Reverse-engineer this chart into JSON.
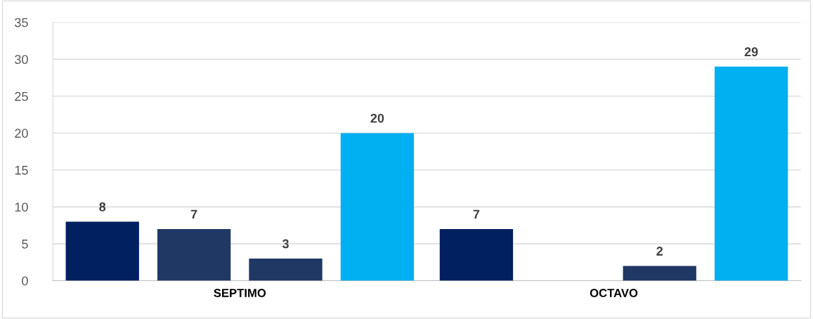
{
  "chart_data": {
    "type": "bar",
    "categories": [
      "SEPTIMO",
      "OCTAVO"
    ],
    "series": [
      {
        "color": "#002060",
        "values": [
          8,
          7
        ]
      },
      {
        "color": "#203864",
        "values": [
          7,
          null
        ]
      },
      {
        "color": "#1f3864",
        "values": [
          3,
          2
        ]
      },
      {
        "color": "#00b0f0",
        "values": [
          20,
          29
        ]
      }
    ],
    "ylim": [
      0,
      35
    ],
    "yticks": [
      0,
      5,
      10,
      15,
      20,
      25,
      30,
      35
    ],
    "grid": "y",
    "data_labels": true,
    "legend": false
  }
}
